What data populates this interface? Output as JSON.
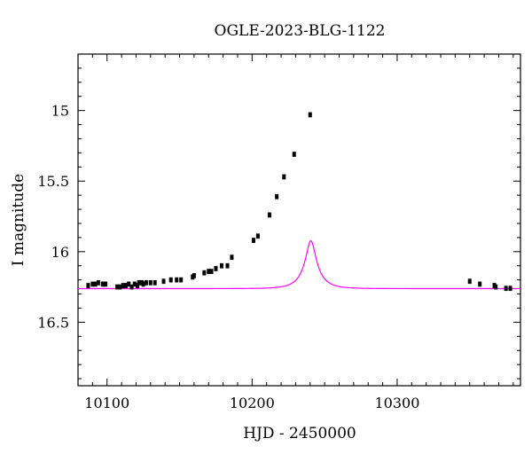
{
  "chart_data": {
    "type": "scatter",
    "title": "OGLE-2023-BLG-1122",
    "xlabel": "HJD - 2450000",
    "ylabel": "I magnitude",
    "xlim": [
      10080,
      10385
    ],
    "ylim": [
      16.95,
      14.6
    ],
    "y_inverted": true,
    "grid": false,
    "x_ticks": [
      10100,
      10200,
      10300
    ],
    "x_tick_labels": [
      "10100",
      "10200",
      "10300"
    ],
    "y_ticks": [
      15,
      15.5,
      16,
      16.5
    ],
    "y_tick_labels": [
      "15",
      "15.5",
      "16",
      "16.5"
    ],
    "colors": {
      "model": "#ff00ff",
      "points": "#000000"
    },
    "series": [
      {
        "type": "scatter",
        "x": [
          10087,
          10090,
          10092,
          10094,
          10097,
          10099,
          10107,
          10109,
          10111,
          10113,
          10115,
          10117,
          10119,
          10121,
          10122,
          10124,
          10125,
          10127,
          10130,
          10133,
          10139,
          10144,
          10148,
          10151,
          10159,
          10160,
          10167,
          10170,
          10172,
          10175,
          10179,
          10183,
          10186,
          10201,
          10204,
          10212,
          10217,
          10222,
          10229,
          10240,
          10350,
          10357,
          10367,
          10368,
          10375,
          10378
        ],
        "y": [
          16.24,
          16.23,
          16.23,
          16.22,
          16.23,
          16.23,
          16.25,
          16.25,
          16.24,
          16.24,
          16.23,
          16.25,
          16.23,
          16.24,
          16.22,
          16.22,
          16.23,
          16.22,
          16.22,
          16.22,
          16.21,
          16.2,
          16.2,
          16.2,
          16.18,
          16.17,
          16.15,
          16.14,
          16.14,
          16.12,
          16.1,
          16.1,
          16.04,
          15.92,
          15.89,
          15.74,
          15.61,
          15.47,
          15.31,
          15.03,
          16.21,
          16.23,
          16.24,
          16.25,
          16.26,
          16.26
        ],
        "yerr": 0.015
      }
    ],
    "model": {
      "type": "line",
      "form": "point-lens",
      "t0": 10240.5,
      "u0": 0.3,
      "tE": 11.5,
      "fs": 0.15,
      "I_base": 16.262
    }
  }
}
